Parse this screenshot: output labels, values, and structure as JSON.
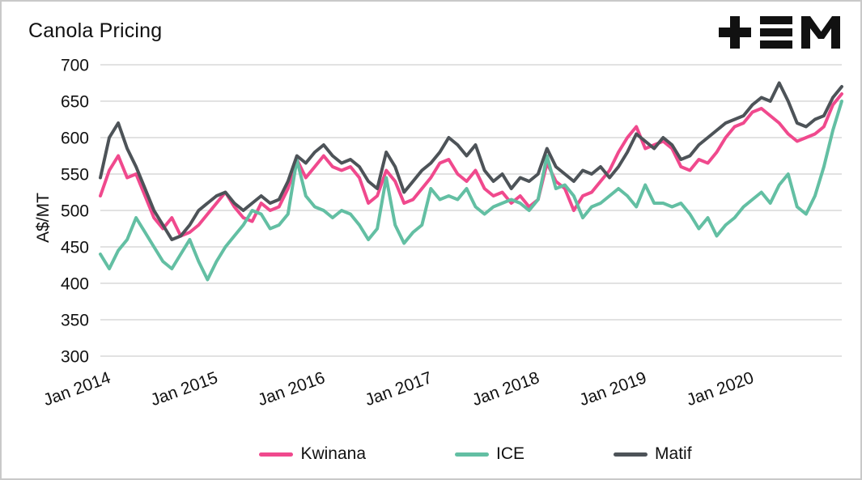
{
  "title": "Canola Pricing",
  "logo_name": "tem-logo",
  "legend": {
    "items": [
      "Kwinana",
      "ICE",
      "Matif"
    ]
  },
  "chart_data": {
    "type": "line",
    "title": "Canola Pricing",
    "xlabel": "",
    "ylabel": "A$/MT",
    "ylim": [
      300,
      700
    ],
    "yticks": [
      300,
      350,
      400,
      450,
      500,
      550,
      600,
      650,
      700
    ],
    "grid": "horizontal",
    "grid_color": "#d9d9d9",
    "legend_position": "bottom",
    "x_start": "Jan 2014",
    "x_interval": "month",
    "x_tick_labels": [
      "Jan 2014",
      "Jan 2015",
      "Jan 2016",
      "Jan 2017",
      "Jan 2018",
      "Jan 2019",
      "Jan 2020"
    ],
    "x_tick_indices": [
      0,
      12,
      24,
      36,
      48,
      60,
      72
    ],
    "series": [
      {
        "name": "Kwinana",
        "color": "#F0498D",
        "values": [
          520,
          555,
          575,
          545,
          550,
          520,
          490,
          475,
          490,
          465,
          470,
          480,
          495,
          510,
          525,
          505,
          490,
          485,
          510,
          500,
          505,
          530,
          570,
          545,
          560,
          575,
          560,
          555,
          560,
          545,
          510,
          520,
          555,
          540,
          510,
          515,
          530,
          545,
          565,
          570,
          550,
          540,
          555,
          530,
          520,
          525,
          510,
          520,
          505,
          515,
          565,
          540,
          530,
          500,
          520,
          525,
          540,
          555,
          580,
          600,
          615,
          585,
          590,
          595,
          585,
          560,
          555,
          570,
          565,
          580,
          600,
          615,
          620,
          635,
          640,
          630,
          620,
          605,
          595,
          600,
          605,
          615,
          645,
          660
        ]
      },
      {
        "name": "ICE",
        "color": "#63BFA3",
        "values": [
          440,
          420,
          445,
          460,
          490,
          470,
          450,
          430,
          420,
          440,
          460,
          430,
          405,
          430,
          450,
          465,
          480,
          500,
          495,
          475,
          480,
          495,
          570,
          520,
          505,
          500,
          490,
          500,
          495,
          480,
          460,
          475,
          545,
          480,
          455,
          470,
          480,
          530,
          515,
          520,
          515,
          530,
          505,
          495,
          505,
          510,
          515,
          510,
          500,
          515,
          575,
          530,
          535,
          520,
          490,
          505,
          510,
          520,
          530,
          520,
          505,
          535,
          510,
          510,
          505,
          510,
          495,
          475,
          490,
          465,
          480,
          490,
          505,
          515,
          525,
          510,
          535,
          550,
          505,
          495,
          520,
          560,
          610,
          650
        ]
      },
      {
        "name": "Matif",
        "color": "#4D5358",
        "values": [
          545,
          600,
          620,
          585,
          560,
          530,
          500,
          480,
          460,
          465,
          480,
          500,
          510,
          520,
          525,
          510,
          500,
          510,
          520,
          510,
          515,
          540,
          575,
          565,
          580,
          590,
          575,
          565,
          570,
          560,
          540,
          530,
          580,
          560,
          525,
          540,
          555,
          565,
          580,
          600,
          590,
          575,
          590,
          555,
          540,
          550,
          530,
          545,
          540,
          550,
          585,
          560,
          550,
          540,
          555,
          550,
          560,
          545,
          560,
          580,
          605,
          595,
          585,
          600,
          590,
          570,
          575,
          590,
          600,
          610,
          620,
          625,
          630,
          645,
          655,
          650,
          675,
          650,
          620,
          615,
          625,
          630,
          655,
          670
        ]
      }
    ]
  }
}
